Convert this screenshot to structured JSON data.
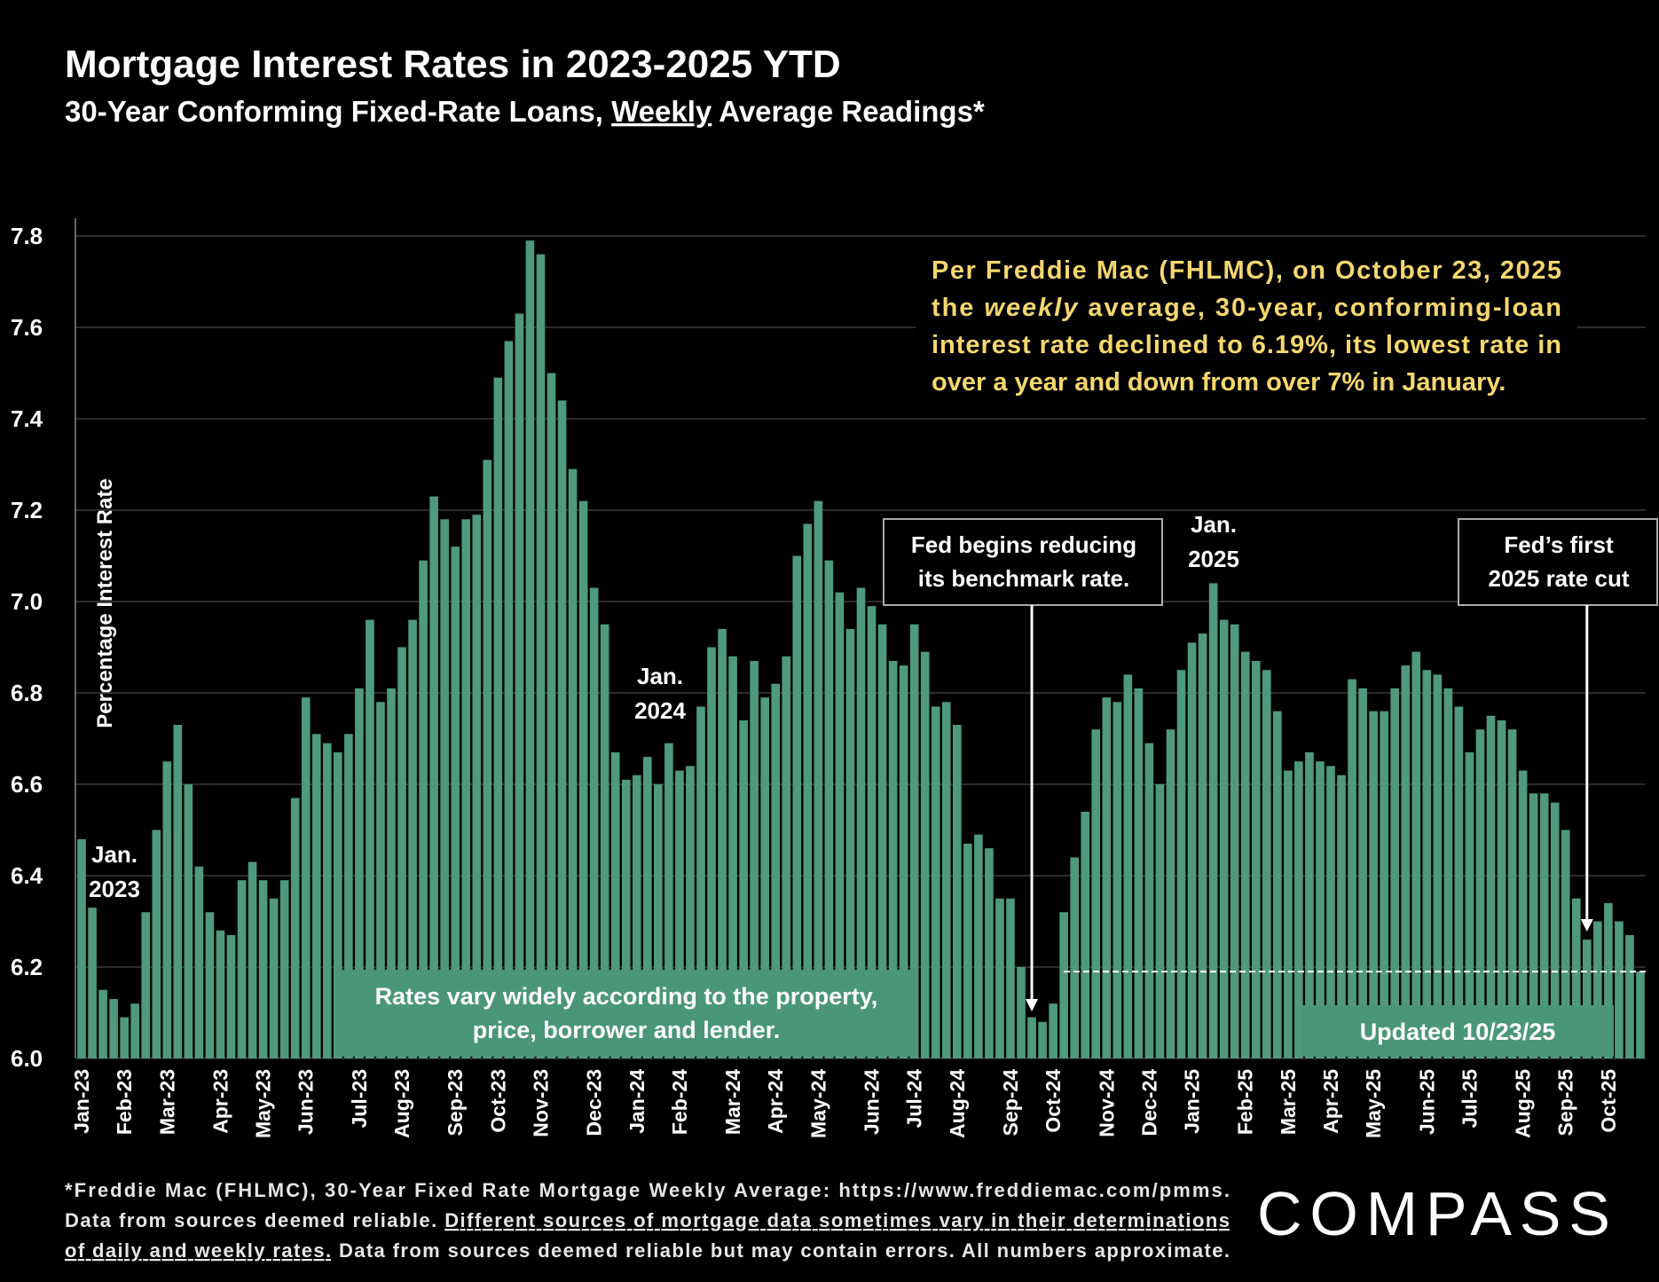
{
  "chart_data": {
    "type": "bar",
    "title": "Mortgage Interest Rates in 2023-2025 YTD",
    "subtitle": [
      "30-Year Conforming Fixed-Rate Loans, ",
      "Weekly",
      " Average Readings*"
    ],
    "y_label": "Percentage Interest  Rate",
    "color": "#4f9a7c",
    "ylim": [
      6.0,
      7.8
    ],
    "yticks": [
      {
        "value": 6.0,
        "label": "6.0"
      },
      6.2,
      6.4,
      6.6,
      6.8,
      {
        "value": 7.0,
        "label": "7.0"
      },
      7.2,
      7.4,
      7.6,
      7.8
    ],
    "grid": true,
    "categories": [
      "Jan-23",
      null,
      null,
      null,
      "Feb-23",
      null,
      null,
      null,
      "Mar-23",
      null,
      null,
      null,
      null,
      "Apr-23",
      null,
      null,
      null,
      "May-23",
      null,
      null,
      null,
      "Jun-23",
      null,
      null,
      null,
      null,
      "Jul-23",
      null,
      null,
      null,
      "Aug-23",
      null,
      null,
      null,
      null,
      "Sep-23",
      null,
      null,
      null,
      "Oct-23",
      null,
      null,
      null,
      "Nov-23",
      null,
      null,
      null,
      null,
      "Dec-23",
      null,
      null,
      null,
      "Jan-24",
      null,
      null,
      null,
      "Feb-24",
      null,
      null,
      null,
      null,
      "Mar-24",
      null,
      null,
      null,
      "Apr-24",
      null,
      null,
      null,
      "May-24",
      null,
      null,
      null,
      null,
      "Jun-24",
      null,
      null,
      null,
      "Jul-24",
      null,
      null,
      null,
      "Aug-24",
      null,
      null,
      null,
      null,
      "Sep-24",
      null,
      null,
      null,
      "Oct-24",
      null,
      null,
      null,
      null,
      "Nov-24",
      null,
      null,
      null,
      "Dec-24",
      null,
      null,
      null,
      "Jan-25",
      null,
      null,
      null,
      null,
      "Feb-25",
      null,
      null,
      null,
      "Mar-25",
      null,
      null,
      null,
      "Apr-25",
      null,
      null,
      null,
      "May-25",
      null,
      null,
      null,
      null,
      "Jun-25",
      null,
      null,
      null,
      "Jul-25",
      null,
      null,
      null,
      null,
      "Aug-25",
      null,
      null,
      null,
      "Sep-25",
      null,
      null,
      null,
      "Oct-25",
      null,
      null,
      null
    ],
    "values": [
      6.48,
      6.33,
      6.15,
      6.13,
      6.09,
      6.12,
      6.32,
      6.5,
      6.65,
      6.73,
      6.6,
      6.42,
      6.32,
      6.28,
      6.27,
      6.39,
      6.43,
      6.39,
      6.35,
      6.39,
      6.57,
      6.79,
      6.71,
      6.69,
      6.67,
      6.71,
      6.81,
      6.96,
      6.78,
      6.81,
      6.9,
      6.96,
      7.09,
      7.23,
      7.18,
      7.12,
      7.18,
      7.19,
      7.31,
      7.49,
      7.57,
      7.63,
      7.79,
      7.76,
      7.5,
      7.44,
      7.29,
      7.22,
      7.03,
      6.95,
      6.67,
      6.61,
      6.62,
      6.66,
      6.6,
      6.69,
      6.63,
      6.64,
      6.77,
      6.9,
      6.94,
      6.88,
      6.74,
      6.87,
      6.79,
      6.82,
      6.88,
      7.1,
      7.17,
      7.22,
      7.09,
      7.02,
      6.94,
      7.03,
      6.99,
      6.95,
      6.87,
      6.86,
      6.95,
      6.89,
      6.77,
      6.78,
      6.73,
      6.47,
      6.49,
      6.46,
      6.35,
      6.35,
      6.2,
      6.09,
      6.08,
      6.12,
      6.32,
      6.44,
      6.54,
      6.72,
      6.79,
      6.78,
      6.84,
      6.81,
      6.69,
      6.6,
      6.72,
      6.85,
      6.91,
      6.93,
      7.04,
      6.96,
      6.95,
      6.89,
      6.87,
      6.85,
      6.76,
      6.63,
      6.65,
      6.67,
      6.65,
      6.64,
      6.62,
      6.83,
      6.81,
      6.76,
      6.76,
      6.81,
      6.86,
      6.89,
      6.85,
      6.84,
      6.81,
      6.77,
      6.67,
      6.72,
      6.75,
      6.74,
      6.72,
      6.63,
      6.58,
      6.58,
      6.56,
      6.5,
      6.35,
      6.26,
      6.3,
      6.34,
      6.3,
      6.27,
      6.19
    ],
    "reference_value": 6.19,
    "info_box": [
      "Per Freddie Mac (FHLMC), on October 23, 2025",
      [
        "the ",
        "weekly",
        " average, 30-year, conforming-loan"
      ],
      "interest rate declined to 6.19%, its lowest rate in",
      "over a year and down from over 7% in January."
    ],
    "year_labels": [
      [
        "Jan.",
        "2023"
      ],
      [
        "Jan.",
        "2024"
      ],
      [
        "Jan.",
        "2025"
      ]
    ],
    "callouts": [
      [
        "Fed begins reducing",
        "its benchmark rate."
      ],
      [
        "Fed’s first",
        "2025 rate cut"
      ]
    ],
    "note_box": [
      "Rates vary widely according to the property,",
      "price, borrower and lender."
    ],
    "updated": "Updated 10/23/25",
    "footnote": [
      [
        "*Freddie Mac (FHLMC), 30-Year Fixed Rate Mortgage Weekly Average:  https://www.freddiemac.com/pmms."
      ],
      [
        "Data from sources deemed reliable. ",
        "Different sources of mortgage data sometimes vary in their determinations"
      ],
      [
        "of daily and weekly rates.",
        " Data from sources deemed reliable but may contain errors. All numbers approximate."
      ]
    ],
    "logo": "COMPASS"
  }
}
